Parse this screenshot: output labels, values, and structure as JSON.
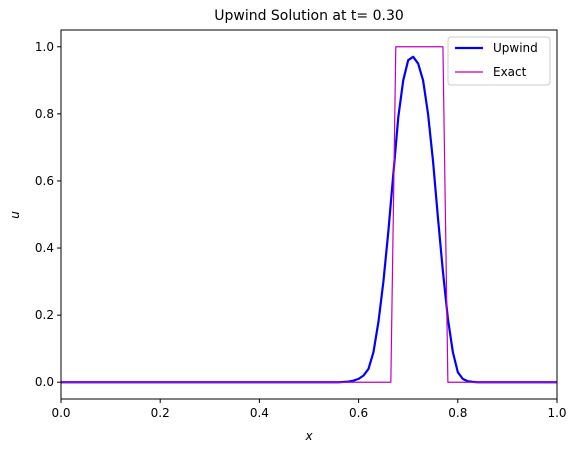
{
  "chart_data": {
    "type": "line",
    "title": "Upwind Solution at t= 0.30",
    "xlabel": "x",
    "ylabel": "u",
    "xlim": [
      0.0,
      1.0
    ],
    "ylim": [
      -0.05,
      1.05
    ],
    "x_ticks": [
      "0.0",
      "0.2",
      "0.4",
      "0.6",
      "0.8",
      "1.0"
    ],
    "y_ticks": [
      "0.0",
      "0.2",
      "0.4",
      "0.6",
      "0.8",
      "1.0"
    ],
    "legend_position": "top-right",
    "grid": false,
    "series": [
      {
        "name": "Upwind",
        "color": "#0000ff",
        "x": [
          0.0,
          0.1,
          0.2,
          0.3,
          0.4,
          0.5,
          0.56,
          0.58,
          0.59,
          0.6,
          0.61,
          0.62,
          0.63,
          0.64,
          0.65,
          0.66,
          0.67,
          0.68,
          0.69,
          0.7,
          0.71,
          0.72,
          0.73,
          0.74,
          0.75,
          0.76,
          0.77,
          0.78,
          0.79,
          0.8,
          0.81,
          0.82,
          0.83,
          0.84,
          0.85,
          0.9,
          1.0
        ],
        "y": [
          0.0,
          0.0,
          0.0,
          0.0,
          0.0,
          0.0,
          0.0,
          0.002,
          0.005,
          0.01,
          0.02,
          0.04,
          0.09,
          0.18,
          0.3,
          0.45,
          0.62,
          0.79,
          0.9,
          0.96,
          0.97,
          0.95,
          0.9,
          0.8,
          0.66,
          0.49,
          0.33,
          0.19,
          0.09,
          0.03,
          0.01,
          0.003,
          0.001,
          0.0,
          0.0,
          0.0,
          0.0
        ]
      },
      {
        "name": "Exact",
        "color": "#bf00bf",
        "x": [
          0.0,
          0.665,
          0.675,
          0.77,
          0.78,
          1.0
        ],
        "y": [
          0.0,
          0.0,
          1.0,
          1.0,
          0.0,
          0.0
        ]
      }
    ]
  }
}
